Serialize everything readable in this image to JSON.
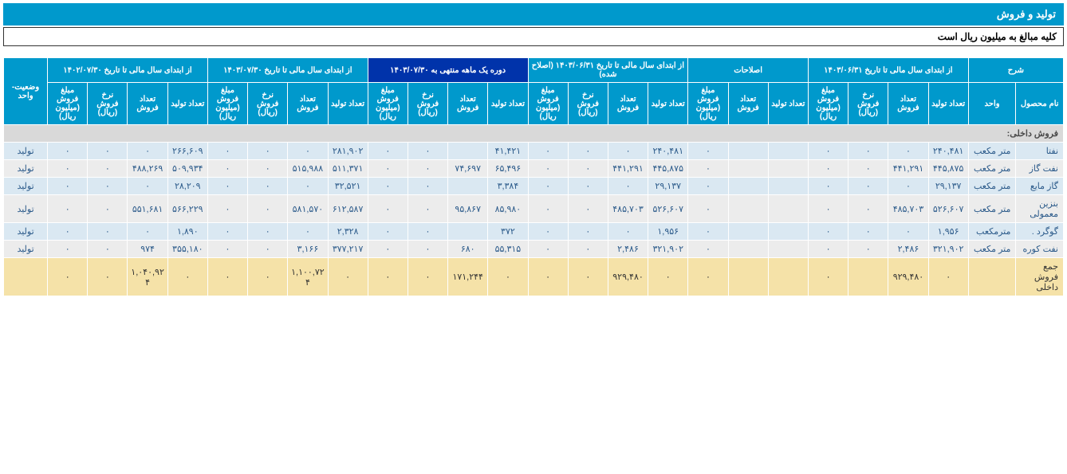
{
  "header": {
    "title": "تولید و فروش",
    "subtitle": "کلیه مبالغ به میلیون ریال است"
  },
  "columns": {
    "desc": "شرح",
    "period1": "از ابتدای سال مالی تا تاریخ ۱۴۰۳/۰۶/۳۱",
    "adjust": "اصلاحات",
    "period2": "از ابتدای سال مالی تا تاریخ ۱۴۰۳/۰۶/۳۱ (اصلاح شده)",
    "period3": "دوره یک ماهه منتهی به ۱۴۰۳/۰۷/۳۰",
    "period4": "از ابتدای سال مالی تا تاریخ ۱۴۰۳/۰۷/۳۰",
    "period5": "از ابتدای سال مالی تا تاریخ ۱۴۰۲/۰۷/۳۰",
    "status": "وضعیت-واحد",
    "prod_name": "نام محصول",
    "unit": "واحد",
    "qty_prod": "تعداد تولید",
    "qty_sale": "تعداد فروش",
    "rate": "نرخ فروش (ریال)",
    "amount": "مبلغ فروش (میلیون ریال)"
  },
  "section": "فروش داخلی:",
  "rows": [
    {
      "name": "نفتا",
      "unit": "متر مکعب",
      "status": "تولید",
      "p1": [
        "۲۴۰,۴۸۱",
        "۰",
        "۰",
        "۰"
      ],
      "adj": [
        "",
        "",
        "۰"
      ],
      "p2": [
        "۲۴۰,۴۸۱",
        "۰",
        "۰",
        "۰"
      ],
      "p3": [
        "۴۱,۴۲۱",
        "",
        "۰",
        "۰"
      ],
      "p4": [
        "۲۸۱,۹۰۲",
        "۰",
        "۰",
        "۰"
      ],
      "p5": [
        "۲۶۶,۶۰۹",
        "۰",
        "۰",
        "۰"
      ]
    },
    {
      "name": "نفت گاز",
      "unit": "متر مکعب",
      "status": "تولید",
      "p1": [
        "۴۴۵,۸۷۵",
        "۴۴۱,۲۹۱",
        "۰",
        "۰"
      ],
      "adj": [
        "",
        "",
        "۰"
      ],
      "p2": [
        "۴۴۵,۸۷۵",
        "۴۴۱,۲۹۱",
        "۰",
        "۰"
      ],
      "p3": [
        "۶۵,۴۹۶",
        "۷۴,۶۹۷",
        "۰",
        "۰"
      ],
      "p4": [
        "۵۱۱,۳۷۱",
        "۵۱۵,۹۸۸",
        "۰",
        "۰"
      ],
      "p5": [
        "۵۰۹,۹۳۴",
        "۴۸۸,۲۶۹",
        "۰",
        "۰"
      ]
    },
    {
      "name": "گاز مایع",
      "unit": "متر مکعب",
      "status": "تولید",
      "p1": [
        "۲۹,۱۳۷",
        "۰",
        "۰",
        "۰"
      ],
      "adj": [
        "",
        "",
        "۰"
      ],
      "p2": [
        "۲۹,۱۳۷",
        "۰",
        "۰",
        "۰"
      ],
      "p3": [
        "۳,۳۸۴",
        "",
        "۰",
        "۰"
      ],
      "p4": [
        "۳۲,۵۲۱",
        "۰",
        "۰",
        "۰"
      ],
      "p5": [
        "۲۸,۲۰۹",
        "۰",
        "۰",
        "۰"
      ]
    },
    {
      "name": "بنزین معمولی",
      "unit": "متر مکعب",
      "status": "تولید",
      "p1": [
        "۵۲۶,۶۰۷",
        "۴۸۵,۷۰۳",
        "۰",
        "۰"
      ],
      "adj": [
        "",
        "",
        "۰"
      ],
      "p2": [
        "۵۲۶,۶۰۷",
        "۴۸۵,۷۰۳",
        "۰",
        "۰"
      ],
      "p3": [
        "۸۵,۹۸۰",
        "۹۵,۸۶۷",
        "۰",
        "۰"
      ],
      "p4": [
        "۶۱۲,۵۸۷",
        "۵۸۱,۵۷۰",
        "۰",
        "۰"
      ],
      "p5": [
        "۵۶۶,۲۲۹",
        "۵۵۱,۶۸۱",
        "۰",
        "۰"
      ]
    },
    {
      "name": "گوگرد .",
      "unit": "مترمکعب",
      "status": "تولید",
      "p1": [
        "۱,۹۵۶",
        "۰",
        "۰",
        "۰"
      ],
      "adj": [
        "",
        "",
        "۰"
      ],
      "p2": [
        "۱,۹۵۶",
        "۰",
        "۰",
        "۰"
      ],
      "p3": [
        "۳۷۲",
        "",
        "۰",
        "۰"
      ],
      "p4": [
        "۲,۳۲۸",
        "۰",
        "۰",
        "۰"
      ],
      "p5": [
        "۱,۸۹۰",
        "۰",
        "۰",
        "۰"
      ]
    },
    {
      "name": "نفت کوره",
      "unit": "متر مکعب",
      "status": "تولید",
      "p1": [
        "۳۲۱,۹۰۲",
        "۲,۴۸۶",
        "۰",
        "۰"
      ],
      "adj": [
        "",
        "",
        "۰"
      ],
      "p2": [
        "۳۲۱,۹۰۲",
        "۲,۴۸۶",
        "۰",
        "۰"
      ],
      "p3": [
        "۵۵,۳۱۵",
        "۶۸۰",
        "۰",
        "۰"
      ],
      "p4": [
        "۳۷۷,۲۱۷",
        "۳,۱۶۶",
        "۰",
        "۰"
      ],
      "p5": [
        "۳۵۵,۱۸۰",
        "۹۷۴",
        "۰",
        "۰"
      ]
    }
  ],
  "sum": {
    "name": "جمع فروش داخلی",
    "p1": [
      "۰",
      "۹۲۹,۴۸۰",
      "",
      "۰"
    ],
    "adj": [
      "",
      "",
      "۰"
    ],
    "p2": [
      "۰",
      "۹۲۹,۴۸۰",
      "۰",
      "۰"
    ],
    "p3": [
      "۰",
      "۱۷۱,۲۴۴",
      "۰",
      "۰"
    ],
    "p4": [
      "۰",
      "۱,۱۰۰,۷۲۴",
      "۰",
      "۰"
    ],
    "p5": [
      "۰",
      "۱,۰۴۰,۹۲۴",
      "۰",
      "۰"
    ],
    "status": ""
  }
}
